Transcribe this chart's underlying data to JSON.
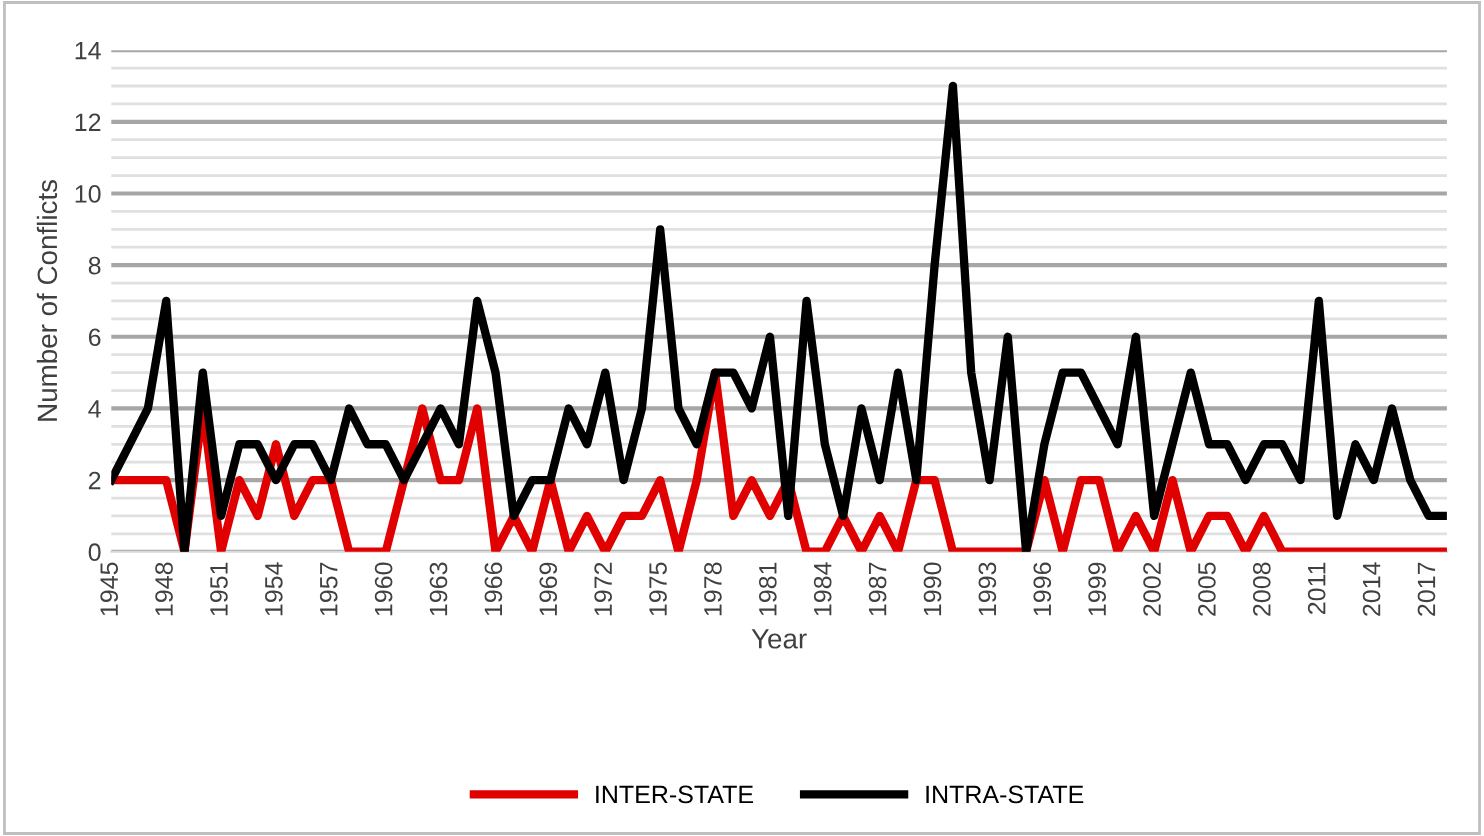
{
  "chart_data": {
    "type": "line",
    "xlabel": "Year",
    "ylabel": "Number of Conflicts",
    "x": [
      1945,
      1946,
      1947,
      1948,
      1949,
      1950,
      1951,
      1952,
      1953,
      1954,
      1955,
      1956,
      1957,
      1958,
      1959,
      1960,
      1961,
      1962,
      1963,
      1964,
      1965,
      1966,
      1967,
      1968,
      1969,
      1970,
      1971,
      1972,
      1973,
      1974,
      1975,
      1976,
      1977,
      1978,
      1979,
      1980,
      1981,
      1982,
      1983,
      1984,
      1985,
      1986,
      1987,
      1988,
      1989,
      1990,
      1991,
      1992,
      1993,
      1994,
      1995,
      1996,
      1997,
      1998,
      1999,
      2000,
      2001,
      2002,
      2003,
      2004,
      2005,
      2006,
      2007,
      2008,
      2009,
      2010,
      2011,
      2012,
      2013,
      2014,
      2015,
      2016,
      2017,
      2018
    ],
    "series": [
      {
        "name": "INTER-STATE",
        "color": "#e00000",
        "values": [
          2,
          2,
          2,
          2,
          0,
          4,
          0,
          2,
          1,
          3,
          1,
          2,
          2,
          0,
          0,
          0,
          2,
          4,
          2,
          2,
          4,
          0,
          1,
          0,
          2,
          0,
          1,
          0,
          1,
          1,
          2,
          0,
          2,
          5,
          1,
          2,
          1,
          2,
          0,
          0,
          1,
          0,
          1,
          0,
          2,
          2,
          0,
          0,
          0,
          0,
          0,
          2,
          0,
          2,
          2,
          0,
          1,
          0,
          2,
          0,
          1,
          1,
          0,
          1,
          0,
          0,
          0,
          0,
          0,
          0,
          0,
          0,
          0,
          0
        ]
      },
      {
        "name": "INTRA-STATE",
        "color": "#000000",
        "values": [
          2,
          3,
          4,
          7,
          0,
          5,
          1,
          3,
          3,
          2,
          3,
          3,
          2,
          4,
          3,
          3,
          2,
          3,
          4,
          3,
          7,
          5,
          1,
          2,
          2,
          4,
          3,
          5,
          2,
          4,
          9,
          4,
          3,
          5,
          5,
          4,
          6,
          1,
          7,
          3,
          1,
          4,
          2,
          5,
          2,
          8,
          13,
          5,
          2,
          6,
          0,
          3,
          5,
          5,
          4,
          3,
          6,
          1,
          3,
          5,
          3,
          3,
          2,
          3,
          3,
          2,
          7,
          1,
          3,
          2,
          4,
          2,
          1,
          1
        ]
      }
    ],
    "xlim": [
      1945,
      2018
    ],
    "xticks": [
      1945,
      1948,
      1951,
      1954,
      1957,
      1960,
      1963,
      1966,
      1969,
      1972,
      1975,
      1978,
      1981,
      1984,
      1987,
      1990,
      1993,
      1996,
      1999,
      2002,
      2005,
      2008,
      2011,
      2014,
      2017
    ],
    "ylim": [
      0,
      14
    ],
    "yticks": [
      0,
      2,
      4,
      6,
      8,
      10,
      12,
      14
    ],
    "grid": "y",
    "legend": "bottom",
    "marker": "none",
    "line_style": "solid"
  }
}
